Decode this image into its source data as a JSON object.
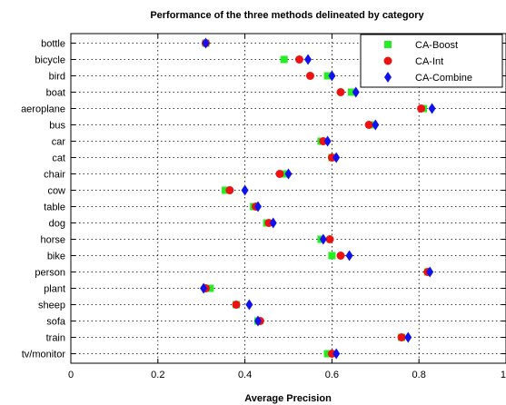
{
  "chart_data": {
    "type": "scatter",
    "title": "Performance of the three methods delineated by category",
    "xlabel": "Average Precision",
    "ylabel": "",
    "xlim": [
      0,
      1
    ],
    "xticks": [
      0,
      0.2,
      0.4,
      0.6,
      0.8,
      1
    ],
    "xtick_labels": [
      "0",
      "0.2",
      "0.4",
      "0.6",
      "0.8",
      "1"
    ],
    "grid": true,
    "legend_position": "top-right",
    "categories": [
      "bottle",
      "bicycle",
      "bird",
      "boat",
      "aeroplane",
      "bus",
      "car",
      "cat",
      "chair",
      "cow",
      "table",
      "dog",
      "horse",
      "bike",
      "person",
      "plant",
      "sheep",
      "sofa",
      "train",
      "tv/monitor"
    ],
    "series": [
      {
        "name": "CA-Boost",
        "marker": "square",
        "color": "#22ee22",
        "values": [
          0.31,
          0.49,
          0.59,
          0.645,
          0.81,
          0.69,
          0.575,
          0.6,
          0.49,
          0.355,
          0.42,
          0.45,
          0.575,
          0.6,
          0.82,
          0.32,
          0.38,
          0.43,
          0.76,
          0.59
        ]
      },
      {
        "name": "CA-Int",
        "marker": "circle",
        "color": "#ee1111",
        "values": [
          0.31,
          0.525,
          0.55,
          0.62,
          0.805,
          0.685,
          0.58,
          0.6,
          0.48,
          0.365,
          0.425,
          0.455,
          0.595,
          0.62,
          0.82,
          0.31,
          0.38,
          0.435,
          0.76,
          0.6
        ]
      },
      {
        "name": "CA-Combine",
        "marker": "diamond",
        "color": "#1111ee",
        "values": [
          0.31,
          0.545,
          0.6,
          0.655,
          0.83,
          0.7,
          0.59,
          0.61,
          0.5,
          0.4,
          0.43,
          0.465,
          0.58,
          0.64,
          0.825,
          0.305,
          0.41,
          0.43,
          0.775,
          0.61
        ]
      }
    ]
  }
}
